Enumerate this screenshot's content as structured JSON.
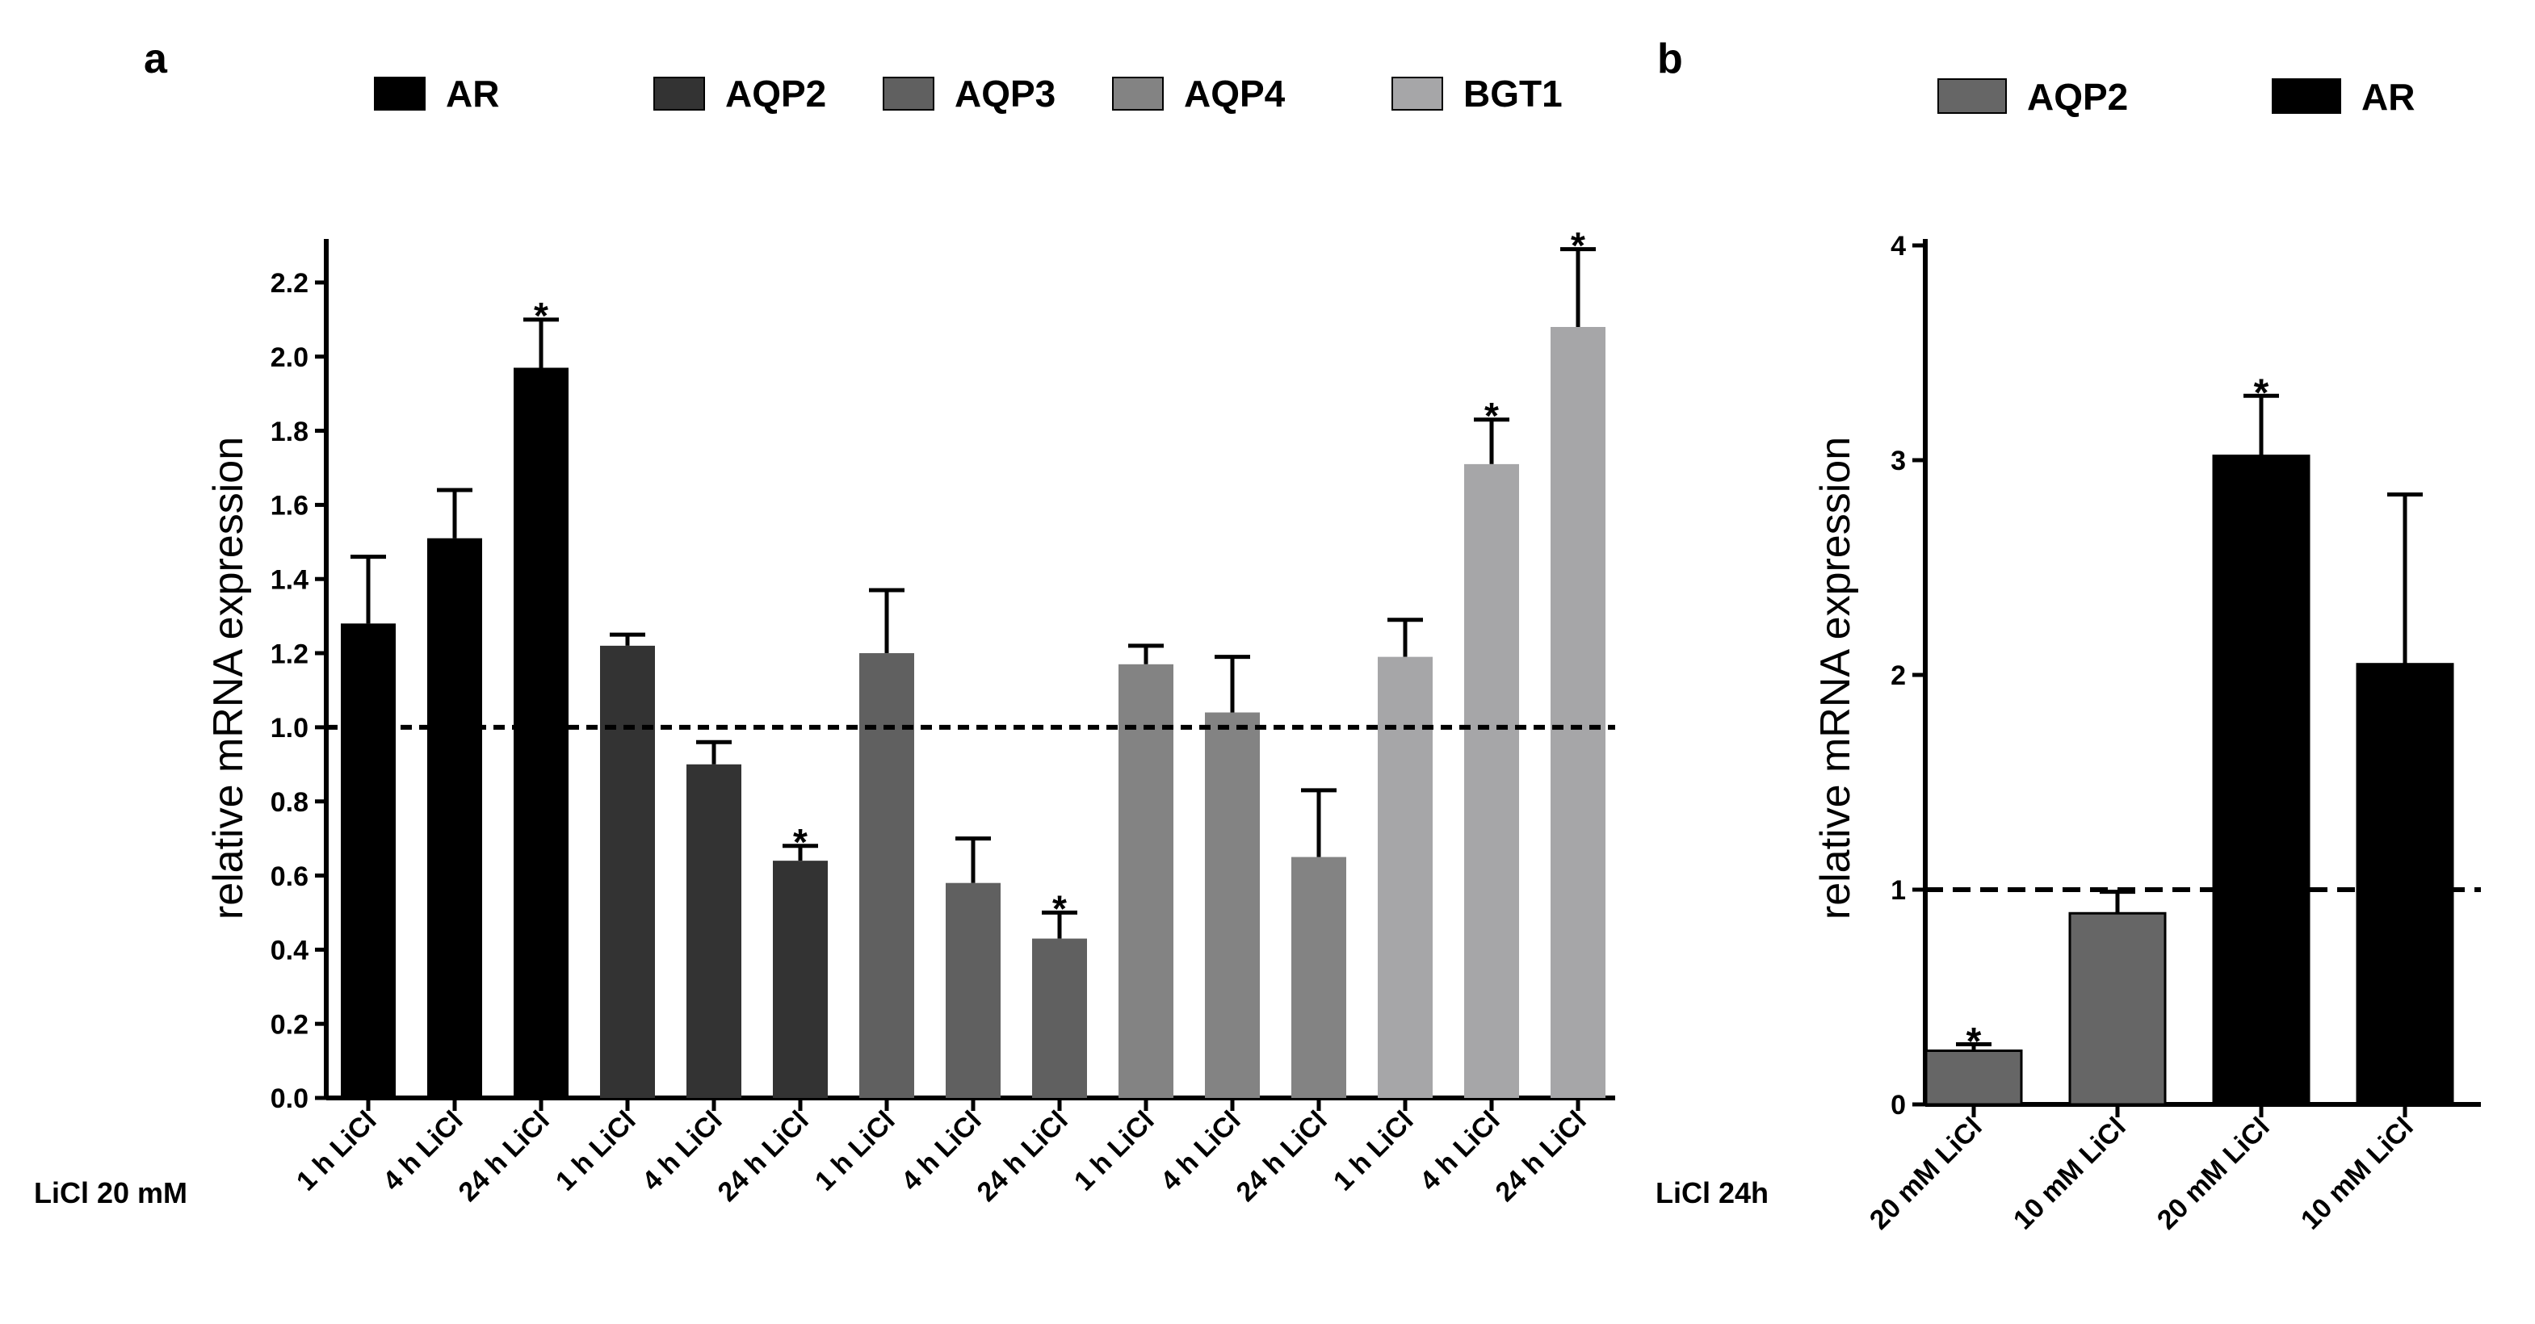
{
  "panel_labels": {
    "a": "a",
    "b": "b"
  },
  "colors": {
    "AR": "#000000",
    "AQP2": "#333333",
    "AQP3": "#606060",
    "AQP4": "#838383",
    "BGT1": "#a6a6a8",
    "AQP2_b": "#666666"
  },
  "chart_data": [
    {
      "type": "bar",
      "panel": "a",
      "ylabel": "relative mRNA expression",
      "condition_label": "LiCl 20 mM",
      "ylim": [
        0,
        2.3
      ],
      "yticks": [
        "0.0",
        "0.2",
        "0.4",
        "0.6",
        "0.8",
        "1.0",
        "1.2",
        "1.4",
        "1.6",
        "1.8",
        "2.0",
        "2.2"
      ],
      "reference_line": 1.0,
      "legend": [
        "AR",
        "AQP2",
        "AQP3",
        "AQP4",
        "BGT1"
      ],
      "categories": [
        "1 h LiCl",
        "4 h LiCl",
        "24 h LiCl",
        "1 h LiCl",
        "4 h LiCl",
        "24 h LiCl",
        "1 h LiCl",
        "4 h LiCl",
        "24 h LiCl",
        "1 h LiCl",
        "4 h LiCl",
        "24 h LiCl",
        "1 h LiCl",
        "4 h LiCl",
        "24 h LiCl"
      ],
      "bars": [
        {
          "series": "AR",
          "category": "1 h LiCl",
          "value": 1.28,
          "error": 0.18,
          "sig": ""
        },
        {
          "series": "AR",
          "category": "4 h LiCl",
          "value": 1.51,
          "error": 0.13,
          "sig": ""
        },
        {
          "series": "AR",
          "category": "24 h LiCl",
          "value": 1.97,
          "error": 0.13,
          "sig": "*"
        },
        {
          "series": "AQP2",
          "category": "1 h LiCl",
          "value": 1.22,
          "error": 0.03,
          "sig": ""
        },
        {
          "series": "AQP2",
          "category": "4 h LiCl",
          "value": 0.9,
          "error": 0.06,
          "sig": ""
        },
        {
          "series": "AQP2",
          "category": "24 h LiCl",
          "value": 0.64,
          "error": 0.04,
          "sig": "*"
        },
        {
          "series": "AQP3",
          "category": "1 h LiCl",
          "value": 1.2,
          "error": 0.17,
          "sig": ""
        },
        {
          "series": "AQP3",
          "category": "4 h LiCl",
          "value": 0.58,
          "error": 0.12,
          "sig": ""
        },
        {
          "series": "AQP3",
          "category": "24 h LiCl",
          "value": 0.43,
          "error": 0.07,
          "sig": "*"
        },
        {
          "series": "AQP4",
          "category": "1 h LiCl",
          "value": 1.17,
          "error": 0.05,
          "sig": ""
        },
        {
          "series": "AQP4",
          "category": "4 h LiCl",
          "value": 1.04,
          "error": 0.15,
          "sig": ""
        },
        {
          "series": "AQP4",
          "category": "24 h LiCl",
          "value": 0.65,
          "error": 0.18,
          "sig": ""
        },
        {
          "series": "BGT1",
          "category": "1 h LiCl",
          "value": 1.19,
          "error": 0.1,
          "sig": ""
        },
        {
          "series": "BGT1",
          "category": "4 h LiCl",
          "value": 1.71,
          "error": 0.12,
          "sig": "*"
        },
        {
          "series": "BGT1",
          "category": "24 h LiCl",
          "value": 2.08,
          "error": 0.21,
          "sig": "*"
        }
      ]
    },
    {
      "type": "bar",
      "panel": "b",
      "ylabel": "relative mRNA expression",
      "condition_label": "LiCl 24h",
      "ylim": [
        0,
        4
      ],
      "yticks": [
        "0",
        "1",
        "2",
        "3",
        "4"
      ],
      "reference_line": 1.0,
      "legend": [
        "AQP2",
        "AR"
      ],
      "categories": [
        "20 mM LiCl",
        "10 mM LiCl",
        "20 mM LiCl",
        "10 mM LiCl"
      ],
      "bars": [
        {
          "series": "AQP2",
          "category": "20 mM LiCl",
          "value": 0.25,
          "error": 0.03,
          "sig": "*"
        },
        {
          "series": "AQP2",
          "category": "10 mM LiCl",
          "value": 0.89,
          "error": 0.1,
          "sig": ""
        },
        {
          "series": "AR",
          "category": "20 mM LiCl",
          "value": 3.02,
          "error": 0.28,
          "sig": "*"
        },
        {
          "series": "AR",
          "category": "10 mM LiCl",
          "value": 2.05,
          "error": 0.79,
          "sig": ""
        }
      ]
    }
  ]
}
